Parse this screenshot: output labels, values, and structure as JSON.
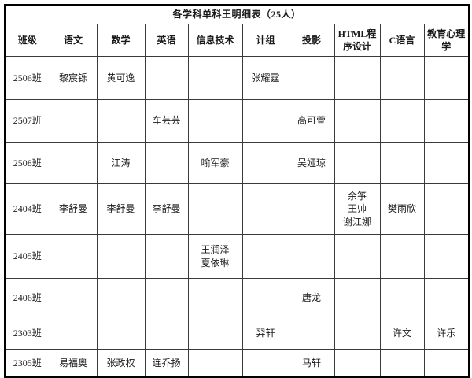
{
  "table": {
    "title": "各学科单科王明细表（25人）",
    "columns": [
      "班级",
      "语文",
      "数学",
      "英语",
      "信息技术",
      "计组",
      "投影",
      "HTML程序设计",
      "C语言",
      "教育心理学"
    ],
    "rows": [
      {
        "cells": [
          "2506班",
          "黎宸铄",
          "黄可逸",
          "",
          "",
          "张耀霆",
          "",
          "",
          "",
          ""
        ]
      },
      {
        "cells": [
          "2507班",
          "",
          "",
          "车芸芸",
          "",
          "",
          "高可萱",
          "",
          "",
          ""
        ]
      },
      {
        "cells": [
          "2508班",
          "",
          "江涛",
          "",
          "喻军豪",
          "",
          "吴娅琼",
          "",
          "",
          ""
        ]
      },
      {
        "cells": [
          "2404班",
          "李舒曼",
          "李舒曼",
          "李舒曼",
          "",
          "",
          "",
          "余筝\n王帅\n谢江娜",
          "樊雨欣",
          ""
        ]
      },
      {
        "cells": [
          "2405班",
          "",
          "",
          "",
          "王润泽\n夏依琳",
          "",
          "",
          "",
          "",
          ""
        ]
      },
      {
        "cells": [
          "2406班",
          "",
          "",
          "",
          "",
          "",
          "唐龙",
          "",
          "",
          ""
        ]
      },
      {
        "cells": [
          "2303班",
          "",
          "",
          "",
          "",
          "羿轩",
          "",
          "",
          "许文",
          "许乐"
        ]
      },
      {
        "cells": [
          "2305班",
          "易福奥",
          "张政权",
          "连乔扬",
          "",
          "",
          "马轩",
          "",
          "",
          ""
        ]
      }
    ]
  }
}
